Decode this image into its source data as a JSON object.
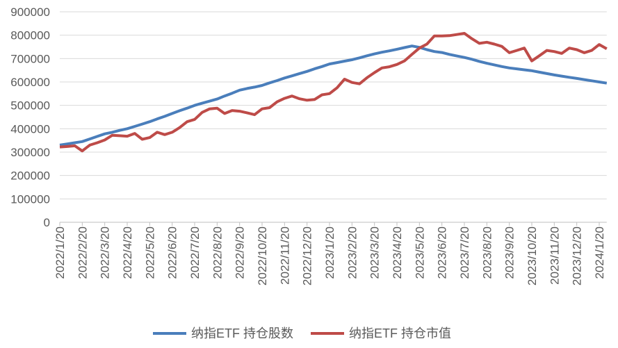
{
  "chart_data": {
    "type": "line",
    "categories": [
      "2022/1/20",
      null,
      null,
      "2022/2/20",
      null,
      null,
      "2022/3/20",
      null,
      null,
      "2022/4/20",
      null,
      null,
      "2022/5/20",
      null,
      null,
      "2022/6/20",
      null,
      null,
      "2022/7/20",
      null,
      null,
      "2022/8/20",
      null,
      null,
      "2022/9/20",
      null,
      null,
      "2022/10/20",
      null,
      null,
      "2022/11/20",
      null,
      null,
      "2022/12/20",
      null,
      null,
      "2023/1/20",
      null,
      null,
      "2023/2/20",
      null,
      null,
      "2023/3/20",
      null,
      null,
      "2023/4/20",
      null,
      null,
      "2023/5/20",
      null,
      null,
      "2023/6/20",
      null,
      null,
      "2023/7/20",
      null,
      null,
      "2023/8/20",
      null,
      null,
      "2023/9/20",
      null,
      null,
      "2023/10/20",
      null,
      null,
      "2023/11/20",
      null,
      null,
      "2023/12/20",
      null,
      null,
      "2024/1/20",
      null
    ],
    "series": [
      {
        "name": "纳指ETF 持仓股数",
        "color": "#4a7ebb",
        "values": [
          330000,
          335000,
          340000,
          345000,
          356000,
          367000,
          378000,
          385000,
          393000,
          400000,
          410000,
          420000,
          430000,
          442000,
          453000,
          465000,
          477000,
          488000,
          500000,
          509000,
          518000,
          527000,
          540000,
          552000,
          565000,
          572000,
          578000,
          585000,
          596000,
          606000,
          617000,
          626000,
          636000,
          645000,
          656000,
          666000,
          677000,
          683000,
          689000,
          695000,
          703000,
          712000,
          720000,
          727000,
          733000,
          740000,
          747000,
          754000,
          748000,
          738000,
          730000,
          726000,
          718000,
          711000,
          705000,
          697000,
          688000,
          680000,
          673000,
          666000,
          660000,
          656000,
          652000,
          648000,
          642000,
          636000,
          630000,
          625000,
          620000,
          615000,
          610000,
          605000,
          600000,
          595000
        ]
      },
      {
        "name": "纳指ETF 持仓市值",
        "color": "#be4b48",
        "values": [
          322000,
          324000,
          327000,
          305000,
          330000,
          340000,
          352000,
          372000,
          370000,
          368000,
          380000,
          355000,
          362000,
          385000,
          375000,
          385000,
          405000,
          430000,
          440000,
          470000,
          485000,
          488000,
          465000,
          478000,
          475000,
          468000,
          460000,
          485000,
          490000,
          515000,
          530000,
          540000,
          528000,
          522000,
          525000,
          545000,
          550000,
          575000,
          612000,
          598000,
          592000,
          618000,
          640000,
          660000,
          665000,
          675000,
          690000,
          718000,
          745000,
          762000,
          797000,
          797000,
          798000,
          803000,
          808000,
          785000,
          765000,
          770000,
          762000,
          752000,
          725000,
          735000,
          745000,
          690000,
          712000,
          735000,
          730000,
          722000,
          745000,
          738000,
          725000,
          735000,
          760000,
          742000
        ]
      }
    ],
    "ylim": [
      0,
      900000
    ],
    "yticks": [
      0,
      100000,
      200000,
      300000,
      400000,
      500000,
      600000,
      700000,
      800000,
      900000
    ],
    "grid": true,
    "legend": "bottom"
  }
}
